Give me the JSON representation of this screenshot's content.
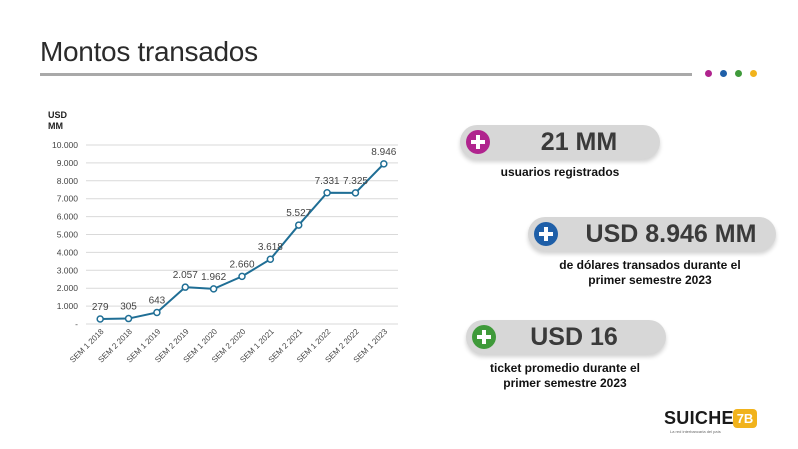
{
  "header": {
    "title": "Montos transados",
    "dot_colors": [
      "#b0248e",
      "#1f5fa8",
      "#3f9a3a",
      "#f1b31c"
    ]
  },
  "chart_data": {
    "type": "line",
    "unit_label": [
      "USD",
      "MM"
    ],
    "categories": [
      "SEM 1 2018",
      "SEM 2 2018",
      "SEM 1 2019",
      "SEM 2 2019",
      "SEM 1 2020",
      "SEM 2 2020",
      "SEM 1 2021",
      "SEM 2 2021",
      "SEM 1 2022",
      "SEM 2 2022",
      "SEM 1 2023"
    ],
    "values": [
      279,
      305,
      643,
      2057,
      1962,
      2660,
      3618,
      5527,
      7331,
      7325,
      8946
    ],
    "value_labels": [
      "279",
      "305",
      "643",
      "2.057",
      "1.962",
      "2.660",
      "3.618",
      "5.527",
      "7.331",
      "7.325",
      "8.946"
    ],
    "ylim": [
      0,
      10000
    ],
    "yticks": [
      "-",
      "1.000",
      "2.000",
      "3.000",
      "4.000",
      "5.000",
      "6.000",
      "7.000",
      "8.000",
      "9.000",
      "10.000"
    ],
    "grid": true,
    "line_color": "#1f6e95"
  },
  "stats": [
    {
      "value": "21 MM",
      "description": [
        "usuarios registrados"
      ],
      "icon": "plus-icon",
      "color": "#b0248e"
    },
    {
      "value": "USD 8.946 MM",
      "description": [
        "de dólares transados durante el",
        "primer semestre 2023"
      ],
      "icon": "plus-icon",
      "color": "#1f5fa8"
    },
    {
      "value": "USD 16",
      "description": [
        "ticket promedio durante el",
        "primer semestre 2023"
      ],
      "icon": "plus-icon",
      "color": "#3f9a3a"
    }
  ],
  "logo": {
    "word": "SUICHE",
    "badge": "7B",
    "tagline": "La red interbancaria del país"
  }
}
